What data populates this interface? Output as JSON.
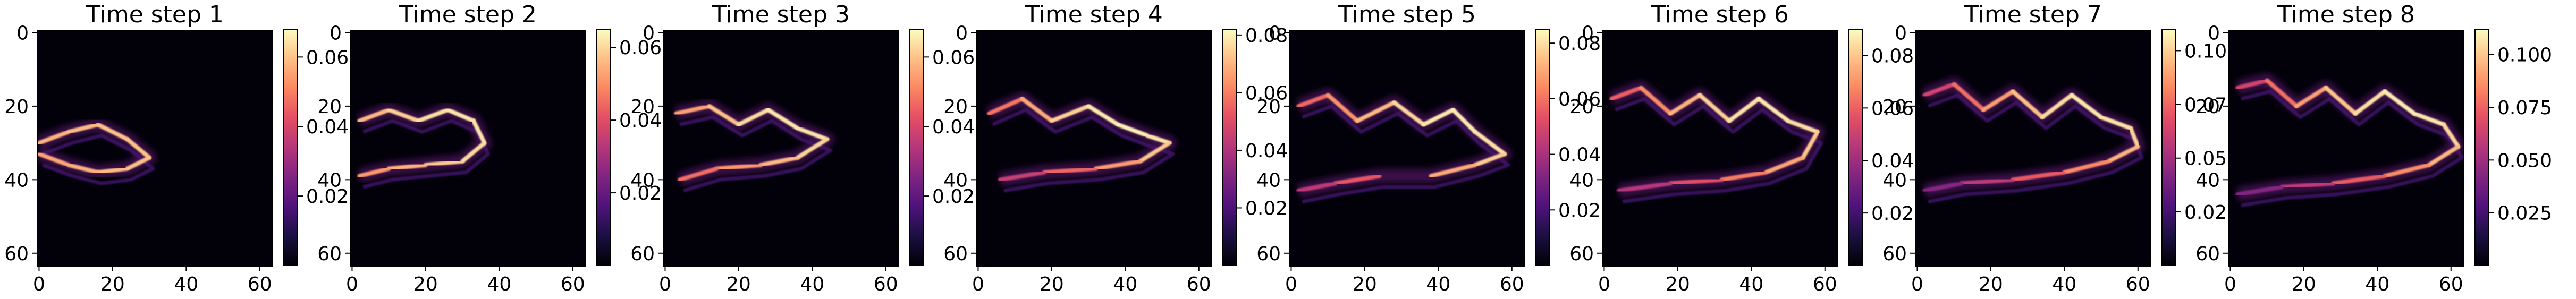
{
  "chart_data": [
    {
      "type": "heatmap",
      "title": "Time step 1",
      "xticks": [
        "0",
        "20",
        "40",
        "60"
      ],
      "yticks": [
        "0",
        "20",
        "40",
        "60"
      ],
      "colorbar": {
        "ticks": [
          "0.02",
          "0.04",
          "0.06"
        ],
        "min": 0.0,
        "max": 0.068
      },
      "grid": false,
      "legend": "none",
      "structure": {
        "points": [
          [
            0,
            30
          ],
          [
            8,
            27
          ],
          [
            16,
            25
          ],
          [
            24,
            29
          ],
          [
            30,
            34
          ],
          [
            24,
            37
          ],
          [
            16,
            38
          ],
          [
            8,
            36
          ],
          [
            0,
            33
          ]
        ],
        "start": 0.055,
        "end": 0.06
      }
    },
    {
      "type": "heatmap",
      "title": "Time step 2",
      "xticks": [
        "0",
        "20",
        "40",
        "60"
      ],
      "yticks": [
        "0",
        "20",
        "40",
        "60"
      ],
      "colorbar": {
        "ticks": [
          "0.02",
          "0.04",
          "0.06"
        ],
        "min": 0.0,
        "max": 0.065
      },
      "grid": false,
      "legend": "none",
      "structure": {
        "points": [
          [
            2,
            24
          ],
          [
            10,
            21
          ],
          [
            18,
            24
          ],
          [
            26,
            21
          ],
          [
            33,
            24
          ],
          [
            36,
            30
          ],
          [
            30,
            35
          ],
          [
            20,
            36
          ],
          [
            10,
            37
          ],
          [
            2,
            39
          ]
        ],
        "start": 0.05,
        "end": 0.062
      }
    },
    {
      "type": "heatmap",
      "title": "Time step 3",
      "xticks": [
        "0",
        "20",
        "40",
        "60"
      ],
      "yticks": [
        "0",
        "20",
        "40",
        "60"
      ],
      "colorbar": {
        "ticks": [
          "0.02",
          "0.04",
          "0.06"
        ],
        "min": 0.0,
        "max": 0.068
      },
      "grid": false,
      "legend": "none",
      "structure": {
        "points": [
          [
            3,
            22
          ],
          [
            12,
            20
          ],
          [
            20,
            25
          ],
          [
            28,
            21
          ],
          [
            36,
            26
          ],
          [
            44,
            29
          ],
          [
            36,
            34
          ],
          [
            26,
            36
          ],
          [
            14,
            37
          ],
          [
            4,
            40
          ]
        ],
        "start": 0.045,
        "end": 0.065
      }
    },
    {
      "type": "heatmap",
      "title": "Time step 4",
      "xticks": [
        "0",
        "20",
        "40",
        "60"
      ],
      "yticks": [
        "0",
        "20",
        "40",
        "60"
      ],
      "colorbar": {
        "ticks": [
          "0.02",
          "0.04",
          "0.06",
          "0.08"
        ],
        "min": 0.0,
        "max": 0.082
      },
      "grid": false,
      "legend": "none",
      "structure": {
        "points": [
          [
            3,
            22
          ],
          [
            12,
            18
          ],
          [
            20,
            24
          ],
          [
            30,
            20
          ],
          [
            38,
            25
          ],
          [
            46,
            28
          ],
          [
            52,
            30
          ],
          [
            44,
            35
          ],
          [
            32,
            37
          ],
          [
            18,
            38
          ],
          [
            6,
            40
          ]
        ],
        "start": 0.04,
        "end": 0.08
      }
    },
    {
      "type": "heatmap",
      "title": "Time step 5",
      "xticks": [
        "0",
        "20",
        "40",
        "60"
      ],
      "yticks": [
        "0",
        "20",
        "40",
        "60"
      ],
      "colorbar": {
        "ticks": [
          "0.02",
          "0.04",
          "0.06",
          "0.08"
        ],
        "min": 0.0,
        "max": 0.085
      },
      "grid": false,
      "legend": "none",
      "structure": {
        "points": [
          [
            2,
            20
          ],
          [
            10,
            17
          ],
          [
            18,
            24
          ],
          [
            28,
            19
          ],
          [
            36,
            25
          ],
          [
            44,
            21
          ],
          [
            50,
            27
          ],
          [
            58,
            33
          ],
          [
            50,
            36
          ],
          [
            38,
            39
          ],
          [
            24,
            39
          ],
          [
            12,
            41
          ],
          [
            2,
            43
          ]
        ],
        "start": 0.04,
        "end": 0.082
      }
    },
    {
      "type": "heatmap",
      "title": "Time step 6",
      "xticks": [
        "0",
        "20",
        "40",
        "60"
      ],
      "yticks": [
        "0",
        "20",
        "40",
        "60"
      ],
      "colorbar": {
        "ticks": [
          "0.02",
          "0.04",
          "0.06",
          "0.08"
        ],
        "min": 0.0,
        "max": 0.09
      },
      "grid": false,
      "legend": "none",
      "structure": {
        "points": [
          [
            2,
            18
          ],
          [
            10,
            15
          ],
          [
            18,
            22
          ],
          [
            26,
            17
          ],
          [
            34,
            24
          ],
          [
            42,
            18
          ],
          [
            50,
            24
          ],
          [
            58,
            27
          ],
          [
            54,
            34
          ],
          [
            44,
            38
          ],
          [
            32,
            40
          ],
          [
            18,
            41
          ],
          [
            4,
            43
          ]
        ],
        "start": 0.04,
        "end": 0.086
      }
    },
    {
      "type": "heatmap",
      "title": "Time step 7",
      "xticks": [
        "0",
        "20",
        "40",
        "60"
      ],
      "yticks": [
        "0",
        "20",
        "40",
        "60"
      ],
      "colorbar": {
        "ticks": [
          "0.025",
          "0.050",
          "0.075",
          "0.100"
        ],
        "min": 0.0,
        "max": 0.11
      },
      "grid": false,
      "legend": "none",
      "structure": {
        "points": [
          [
            2,
            17
          ],
          [
            10,
            14
          ],
          [
            18,
            21
          ],
          [
            26,
            16
          ],
          [
            34,
            23
          ],
          [
            42,
            17
          ],
          [
            50,
            23
          ],
          [
            58,
            26
          ],
          [
            60,
            31
          ],
          [
            52,
            35
          ],
          [
            40,
            38
          ],
          [
            26,
            40
          ],
          [
            12,
            41
          ],
          [
            2,
            43
          ]
        ],
        "start": 0.035,
        "end": 0.105
      }
    },
    {
      "type": "heatmap",
      "title": "Time step 8",
      "xticks": [
        "0",
        "20",
        "40",
        "60"
      ],
      "yticks": [
        "0",
        "20",
        "40",
        "60"
      ],
      "colorbar": {
        "ticks": [
          "0.025",
          "0.050",
          "0.075",
          "0.100"
        ],
        "min": 0.0,
        "max": 0.112
      },
      "grid": false,
      "legend": "none",
      "structure": {
        "points": [
          [
            2,
            15
          ],
          [
            10,
            13
          ],
          [
            18,
            20
          ],
          [
            26,
            15
          ],
          [
            34,
            22
          ],
          [
            42,
            16
          ],
          [
            50,
            22
          ],
          [
            58,
            25
          ],
          [
            62,
            31
          ],
          [
            54,
            36
          ],
          [
            42,
            39
          ],
          [
            28,
            41
          ],
          [
            14,
            42
          ],
          [
            2,
            44
          ]
        ],
        "start": 0.035,
        "end": 0.108
      }
    }
  ]
}
